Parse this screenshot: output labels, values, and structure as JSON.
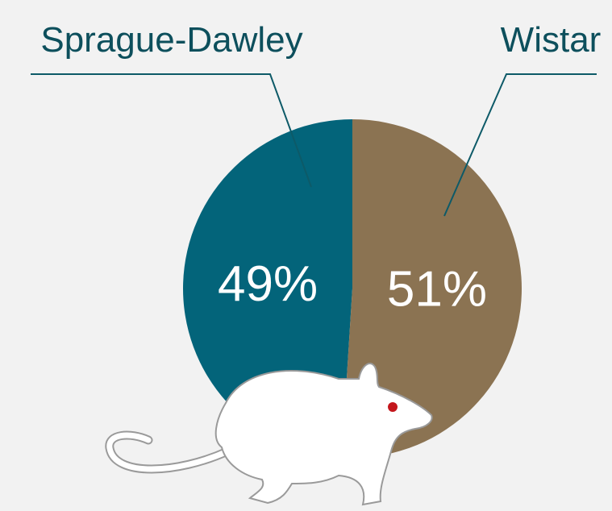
{
  "chart_data": {
    "type": "pie",
    "categories": [
      "Sprague-Dawley",
      "Wistar"
    ],
    "values": [
      49,
      51
    ],
    "value_labels": [
      "49%",
      "51%"
    ],
    "colors": [
      "#03647a",
      "#8b7352"
    ]
  }
}
